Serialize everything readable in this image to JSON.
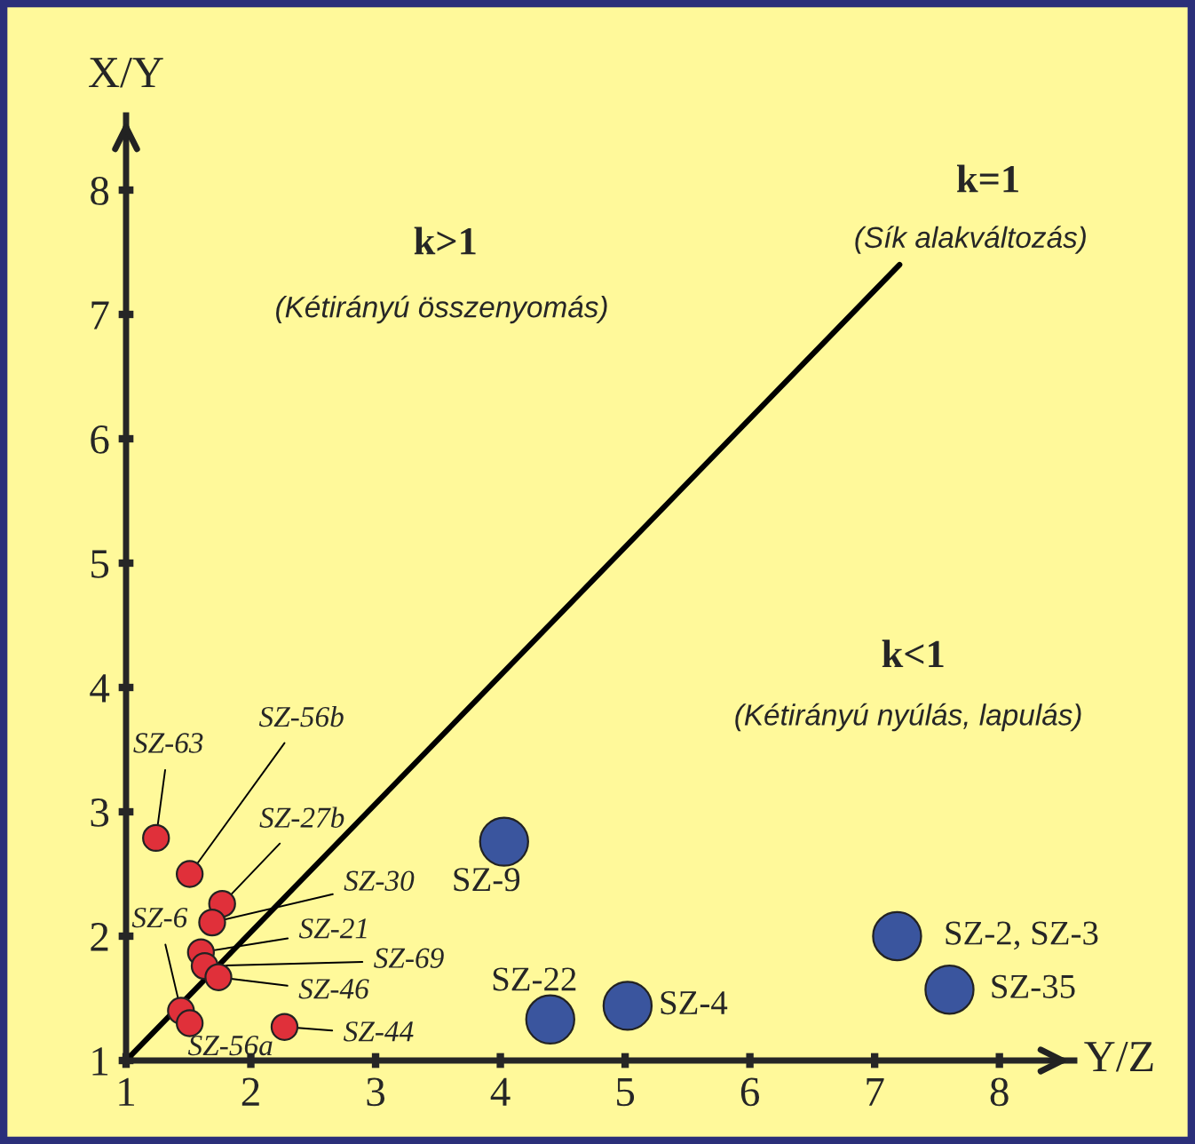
{
  "chart_data": {
    "type": "scatter",
    "xlabel": "Y/Z",
    "ylabel": "X/Y",
    "xlim": [
      1,
      8.6
    ],
    "ylim": [
      1,
      8.6
    ],
    "xticks": [
      1,
      2,
      3,
      4,
      5,
      6,
      7,
      8
    ],
    "yticks": [
      1,
      2,
      3,
      4,
      5,
      6,
      7,
      8
    ],
    "grid": false,
    "series": [
      {
        "type": "line",
        "color": "#000000",
        "x": [
          1,
          7.2
        ],
        "values": [
          1,
          7.4
        ]
      },
      {
        "color": "#e0303a",
        "marker": "circle",
        "x": [
          1.24,
          1.51,
          1.77,
          1.69,
          1.6,
          1.63,
          1.74,
          1.44,
          1.51,
          2.27
        ],
        "values": [
          2.79,
          2.5,
          2.26,
          2.11,
          1.87,
          1.76,
          1.67,
          1.4,
          1.3,
          1.27
        ],
        "value_labels": [
          "SZ-63",
          "SZ-56b",
          "SZ-27b",
          "SZ-30",
          "SZ-21",
          "SZ-69",
          "SZ-46",
          "SZ-6",
          "SZ-56a",
          "SZ-44"
        ]
      },
      {
        "color": "#3a559e",
        "marker": "circle",
        "x": [
          4.03,
          4.4,
          5.02,
          7.18,
          7.6
        ],
        "values": [
          2.76,
          1.33,
          1.44,
          2.0,
          1.57
        ],
        "value_labels": [
          "SZ-9",
          "SZ-22",
          "SZ-4",
          "SZ-2, SZ-3",
          "SZ-35"
        ]
      }
    ],
    "annotations": [
      "k>1",
      "(Kétirányú összenyomás)",
      "k=1",
      "(Sík alakváltozás)",
      "k<1",
      "(Kétirányú nyúlás, lapulás)"
    ]
  }
}
